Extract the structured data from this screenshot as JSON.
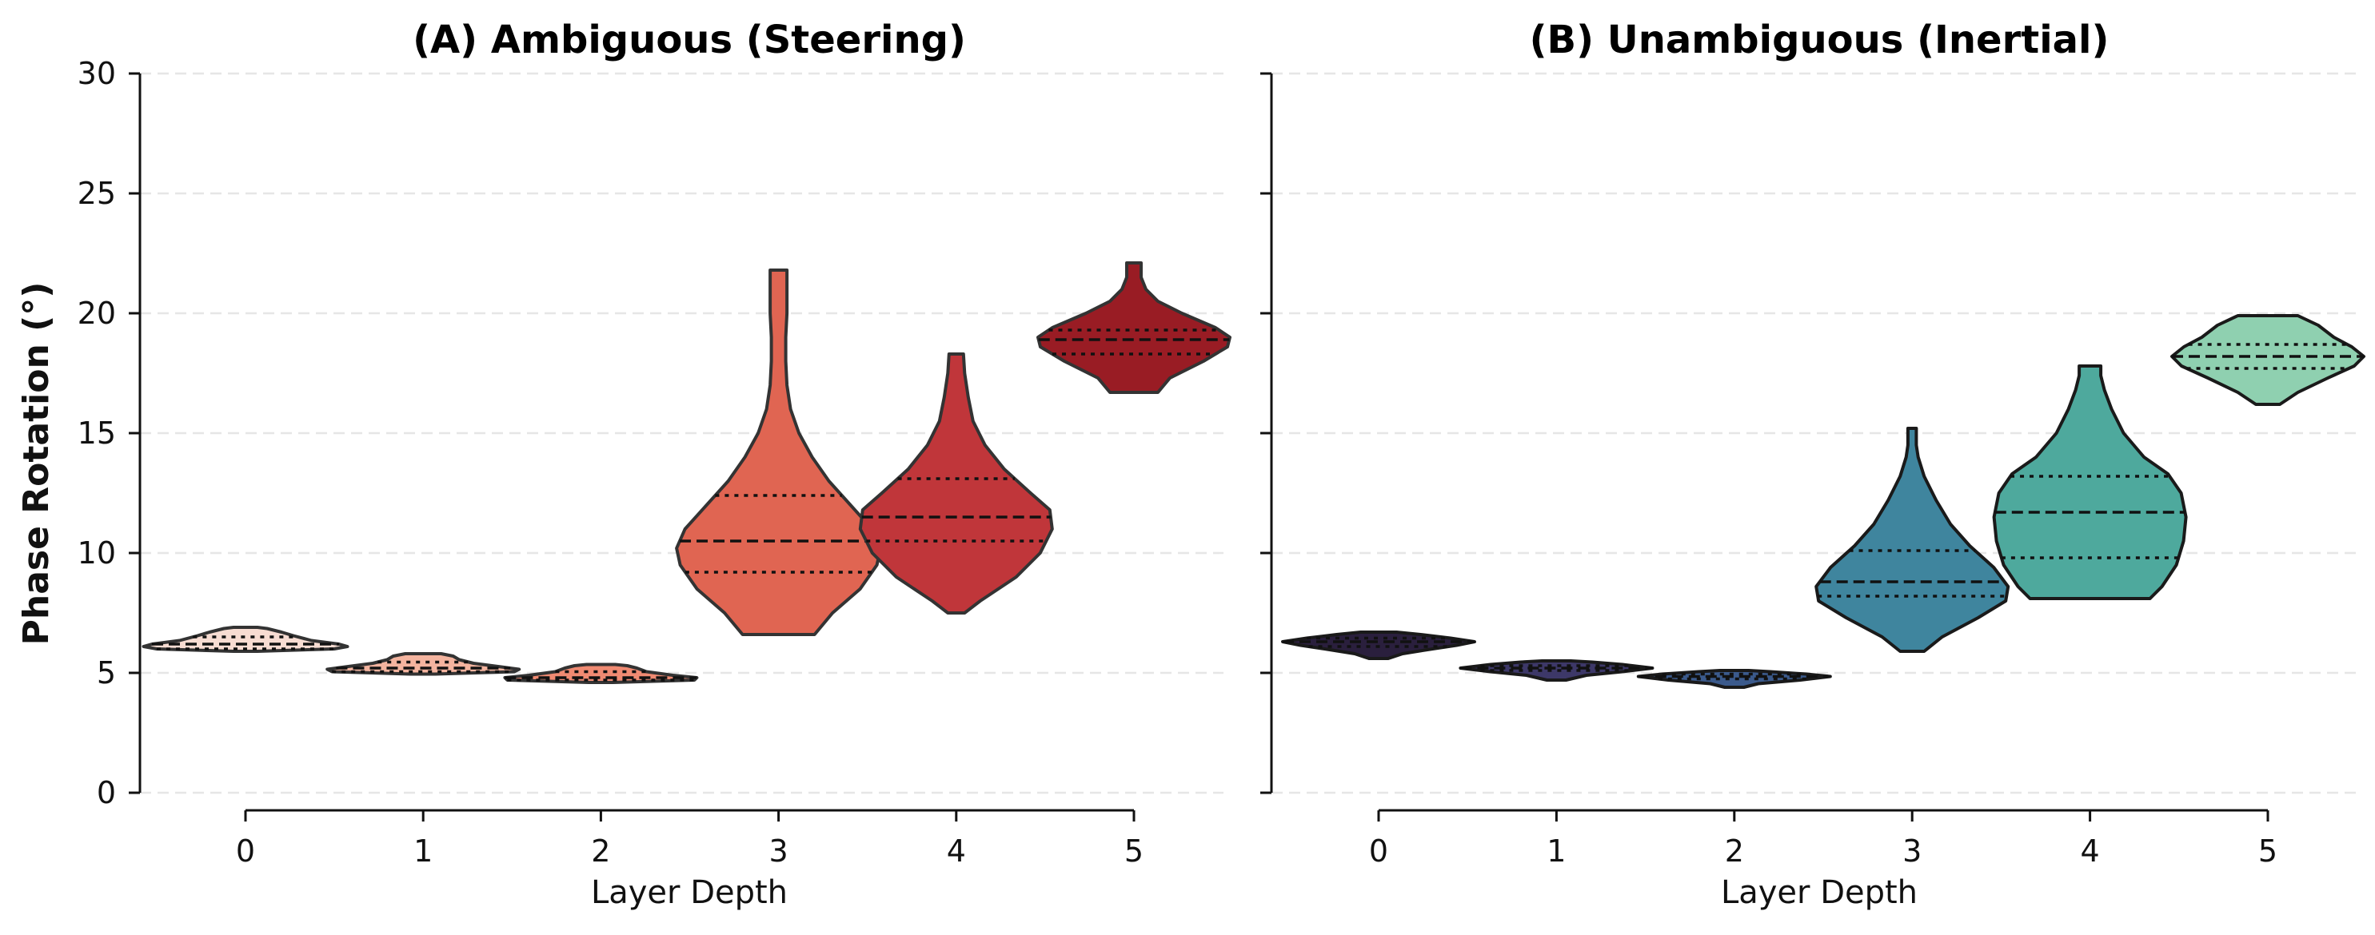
{
  "chart_data": [
    {
      "type": "violin",
      "title": "(A) Ambiguous (Steering)",
      "title_color": "#8b0000",
      "xlabel": "Layer Depth",
      "ylabel": "Phase Rotation (°)",
      "ylim": [
        0,
        30
      ],
      "yticks": [
        "0",
        "5",
        "10",
        "15",
        "20",
        "25",
        "30"
      ],
      "grid": "y-dashed",
      "categories": [
        "0",
        "1",
        "2",
        "3",
        "4",
        "5"
      ],
      "edge_color": "#333333",
      "violins": [
        {
          "fill": "#f7dcd2",
          "min": 5.9,
          "max": 6.9,
          "q1": 6.0,
          "median": 6.2,
          "q3": 6.5,
          "profile": [
            [
              5.9,
              0.1
            ],
            [
              6.0,
              0.74
            ],
            [
              6.1,
              0.85
            ],
            [
              6.2,
              0.78
            ],
            [
              6.35,
              0.55
            ],
            [
              6.55,
              0.4
            ],
            [
              6.7,
              0.3
            ],
            [
              6.85,
              0.18
            ],
            [
              6.9,
              0.1
            ]
          ]
        },
        {
          "fill": "#f4b49f",
          "min": 4.95,
          "max": 5.8,
          "q1": 5.05,
          "median": 5.2,
          "q3": 5.45,
          "profile": [
            [
              4.95,
              0.1
            ],
            [
              5.05,
              0.76
            ],
            [
              5.15,
              0.8
            ],
            [
              5.25,
              0.65
            ],
            [
              5.4,
              0.42
            ],
            [
              5.55,
              0.3
            ],
            [
              5.7,
              0.25
            ],
            [
              5.8,
              0.15
            ]
          ]
        },
        {
          "fill": "#f08a72",
          "min": 4.6,
          "max": 5.35,
          "q1": 4.7,
          "median": 4.8,
          "q3": 5.05,
          "profile": [
            [
              4.6,
              0.1
            ],
            [
              4.7,
              0.78
            ],
            [
              4.8,
              0.8
            ],
            [
              4.9,
              0.6
            ],
            [
              5.05,
              0.38
            ],
            [
              5.2,
              0.3
            ],
            [
              5.3,
              0.22
            ],
            [
              5.35,
              0.12
            ]
          ]
        },
        {
          "fill": "#e06552",
          "min": 6.6,
          "max": 21.8,
          "q1": 9.2,
          "median": 10.5,
          "q3": 12.4,
          "profile": [
            [
              6.6,
              0.3
            ],
            [
              7.5,
              0.45
            ],
            [
              8.5,
              0.68
            ],
            [
              9.5,
              0.82
            ],
            [
              10.2,
              0.85
            ],
            [
              11.0,
              0.78
            ],
            [
              12.0,
              0.6
            ],
            [
              13.0,
              0.42
            ],
            [
              14.0,
              0.28
            ],
            [
              15.0,
              0.17
            ],
            [
              16.0,
              0.1
            ],
            [
              17.0,
              0.07
            ],
            [
              18.0,
              0.06
            ],
            [
              19.0,
              0.06
            ],
            [
              20.0,
              0.07
            ],
            [
              21.0,
              0.07
            ],
            [
              21.8,
              0.07
            ]
          ]
        },
        {
          "fill": "#c0363a",
          "min": 7.5,
          "max": 18.3,
          "q1": 10.5,
          "median": 11.5,
          "q3": 13.1,
          "profile": [
            [
              7.5,
              0.07
            ],
            [
              8.0,
              0.2
            ],
            [
              9.0,
              0.5
            ],
            [
              10.0,
              0.7
            ],
            [
              11.0,
              0.8
            ],
            [
              11.8,
              0.78
            ],
            [
              12.5,
              0.62
            ],
            [
              13.5,
              0.4
            ],
            [
              14.5,
              0.24
            ],
            [
              15.5,
              0.14
            ],
            [
              16.5,
              0.1
            ],
            [
              17.5,
              0.07
            ],
            [
              18.3,
              0.06
            ]
          ]
        },
        {
          "fill": "#991c24",
          "min": 16.7,
          "max": 22.1,
          "q1": 18.3,
          "median": 18.9,
          "q3": 19.3,
          "profile": [
            [
              16.7,
              0.2
            ],
            [
              17.3,
              0.3
            ],
            [
              18.0,
              0.58
            ],
            [
              18.6,
              0.78
            ],
            [
              19.0,
              0.8
            ],
            [
              19.4,
              0.68
            ],
            [
              20.0,
              0.4
            ],
            [
              20.5,
              0.2
            ],
            [
              21.0,
              0.1
            ],
            [
              21.5,
              0.06
            ],
            [
              22.1,
              0.06
            ]
          ]
        }
      ]
    },
    {
      "type": "violin",
      "title": "(B) Unambiguous (Inertial)",
      "title_color": "#006400",
      "xlabel": "Layer Depth",
      "ylabel": "",
      "ylim": [
        0,
        30
      ],
      "grid": "y-dashed",
      "categories": [
        "0",
        "1",
        "2",
        "3",
        "4",
        "5"
      ],
      "edge_color": "#1a1a1a",
      "violins": [
        {
          "fill": "#2a1f3d",
          "min": 5.6,
          "max": 6.7,
          "q1": 6.1,
          "median": 6.3,
          "q3": 6.45,
          "profile": [
            [
              5.6,
              0.08
            ],
            [
              5.8,
              0.2
            ],
            [
              6.0,
              0.45
            ],
            [
              6.15,
              0.65
            ],
            [
              6.3,
              0.8
            ],
            [
              6.45,
              0.6
            ],
            [
              6.6,
              0.35
            ],
            [
              6.7,
              0.15
            ]
          ]
        },
        {
          "fill": "#3d3868",
          "min": 4.7,
          "max": 5.5,
          "q1": 5.1,
          "median": 5.2,
          "q3": 5.3,
          "profile": [
            [
              4.7,
              0.08
            ],
            [
              4.9,
              0.25
            ],
            [
              5.05,
              0.55
            ],
            [
              5.2,
              0.8
            ],
            [
              5.35,
              0.55
            ],
            [
              5.45,
              0.3
            ],
            [
              5.5,
              0.12
            ]
          ]
        },
        {
          "fill": "#3b5a8c",
          "min": 4.4,
          "max": 5.1,
          "q1": 4.75,
          "median": 4.85,
          "q3": 4.95,
          "profile": [
            [
              4.4,
              0.08
            ],
            [
              4.55,
              0.2
            ],
            [
              4.7,
              0.55
            ],
            [
              4.85,
              0.8
            ],
            [
              4.95,
              0.6
            ],
            [
              5.05,
              0.3
            ],
            [
              5.1,
              0.12
            ]
          ]
        },
        {
          "fill": "#3f859e",
          "min": 5.9,
          "max": 15.2,
          "q1": 8.2,
          "median": 8.8,
          "q3": 10.1,
          "profile": [
            [
              5.9,
              0.1
            ],
            [
              6.5,
              0.25
            ],
            [
              7.3,
              0.55
            ],
            [
              8.0,
              0.78
            ],
            [
              8.6,
              0.8
            ],
            [
              9.4,
              0.68
            ],
            [
              10.3,
              0.48
            ],
            [
              11.2,
              0.32
            ],
            [
              12.2,
              0.2
            ],
            [
              13.2,
              0.1
            ],
            [
              14.0,
              0.05
            ],
            [
              14.5,
              0.035
            ],
            [
              15.2,
              0.035
            ]
          ]
        },
        {
          "fill": "#4ea99d",
          "min": 8.1,
          "max": 17.8,
          "q1": 9.8,
          "median": 11.7,
          "q3": 13.2,
          "profile": [
            [
              8.1,
              0.5
            ],
            [
              8.6,
              0.6
            ],
            [
              9.5,
              0.72
            ],
            [
              10.5,
              0.78
            ],
            [
              11.5,
              0.8
            ],
            [
              12.5,
              0.76
            ],
            [
              13.3,
              0.65
            ],
            [
              14.0,
              0.45
            ],
            [
              15.0,
              0.28
            ],
            [
              16.0,
              0.18
            ],
            [
              16.8,
              0.12
            ],
            [
              17.4,
              0.09
            ],
            [
              17.8,
              0.09
            ]
          ]
        },
        {
          "fill": "#8fd0b0",
          "min": 16.2,
          "max": 19.9,
          "q1": 17.7,
          "median": 18.2,
          "q3": 18.7,
          "profile": [
            [
              16.2,
              0.1
            ],
            [
              16.7,
              0.25
            ],
            [
              17.3,
              0.5
            ],
            [
              17.8,
              0.72
            ],
            [
              18.2,
              0.8
            ],
            [
              18.6,
              0.7
            ],
            [
              19.0,
              0.55
            ],
            [
              19.5,
              0.42
            ],
            [
              19.9,
              0.25
            ]
          ]
        }
      ]
    }
  ]
}
